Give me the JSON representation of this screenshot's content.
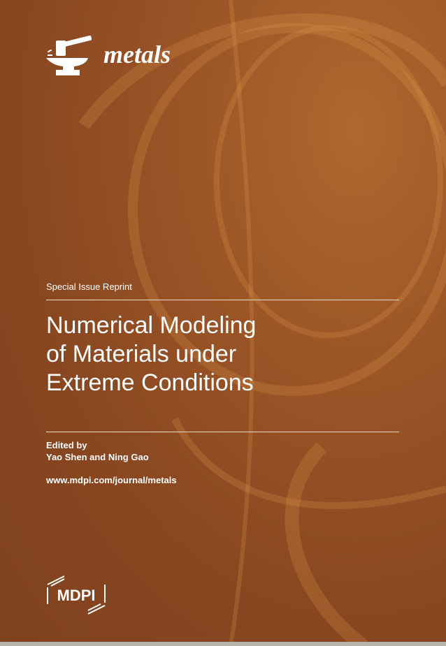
{
  "journal": {
    "name": "metals",
    "logo_icon": "hammer-anvil-icon"
  },
  "cover": {
    "label": "Special Issue Reprint",
    "title_lines": [
      "Numerical Modeling",
      "of Materials under",
      "Extreme Conditions"
    ],
    "edited_by_label": "Edited by",
    "editors": "Yao Shen and Ning Gao",
    "url": "www.mdpi.com/journal/metals"
  },
  "publisher": {
    "name": "MDPI"
  },
  "colors": {
    "background": "#8a4a22",
    "text": "#ffffff"
  }
}
